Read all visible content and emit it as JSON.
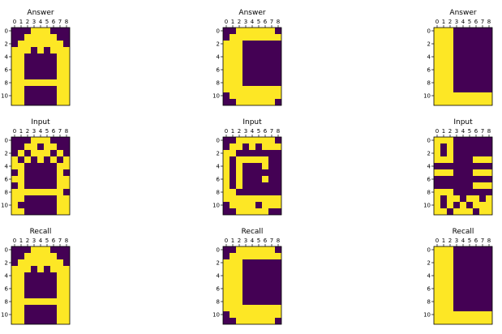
{
  "colors": {
    "on": "#fde725",
    "off": "#440154",
    "axis": "#000000",
    "background": "#ffffff"
  },
  "chart_data": [
    {
      "type": "heatmap",
      "title": "Answer",
      "xticks": [
        "0",
        "1",
        "2",
        "3",
        "4",
        "5",
        "6",
        "7",
        "8"
      ],
      "yticks": [
        "0",
        "2",
        "4",
        "6",
        "8",
        "10"
      ],
      "grid": [
        [
          0,
          0,
          0,
          1,
          1,
          1,
          0,
          0,
          0
        ],
        [
          0,
          0,
          1,
          1,
          1,
          1,
          1,
          0,
          0
        ],
        [
          0,
          1,
          1,
          1,
          1,
          1,
          1,
          1,
          0
        ],
        [
          1,
          1,
          1,
          0,
          1,
          0,
          1,
          1,
          1
        ],
        [
          1,
          1,
          0,
          0,
          0,
          0,
          0,
          1,
          1
        ],
        [
          1,
          1,
          0,
          0,
          0,
          0,
          0,
          1,
          1
        ],
        [
          1,
          1,
          0,
          0,
          0,
          0,
          0,
          1,
          1
        ],
        [
          1,
          1,
          0,
          0,
          0,
          0,
          0,
          1,
          1
        ],
        [
          1,
          1,
          1,
          1,
          1,
          1,
          1,
          1,
          1
        ],
        [
          1,
          1,
          0,
          0,
          0,
          0,
          0,
          1,
          1
        ],
        [
          1,
          1,
          0,
          0,
          0,
          0,
          0,
          1,
          1
        ],
        [
          1,
          1,
          0,
          0,
          0,
          0,
          0,
          1,
          1
        ]
      ]
    },
    {
      "type": "heatmap",
      "title": "Answer",
      "xticks": [
        "0",
        "1",
        "2",
        "3",
        "4",
        "5",
        "6",
        "7",
        "8"
      ],
      "yticks": [
        "0",
        "2",
        "4",
        "6",
        "8",
        "10"
      ],
      "grid": [
        [
          0,
          0,
          1,
          1,
          1,
          1,
          1,
          1,
          0
        ],
        [
          0,
          1,
          1,
          1,
          1,
          1,
          1,
          1,
          1
        ],
        [
          1,
          1,
          1,
          0,
          0,
          0,
          0,
          0,
          0
        ],
        [
          1,
          1,
          1,
          0,
          0,
          0,
          0,
          0,
          0
        ],
        [
          1,
          1,
          1,
          0,
          0,
          0,
          0,
          0,
          0
        ],
        [
          1,
          1,
          1,
          0,
          0,
          0,
          0,
          0,
          0
        ],
        [
          1,
          1,
          1,
          0,
          0,
          0,
          0,
          0,
          0
        ],
        [
          1,
          1,
          1,
          0,
          0,
          0,
          0,
          0,
          0
        ],
        [
          1,
          1,
          1,
          0,
          0,
          0,
          0,
          0,
          0
        ],
        [
          1,
          1,
          1,
          1,
          1,
          1,
          1,
          1,
          1
        ],
        [
          0,
          1,
          1,
          1,
          1,
          1,
          1,
          1,
          1
        ],
        [
          0,
          0,
          1,
          1,
          1,
          1,
          1,
          1,
          0
        ]
      ]
    },
    {
      "type": "heatmap",
      "title": "Answer",
      "xticks": [
        "0",
        "1",
        "2",
        "3",
        "4",
        "5",
        "6",
        "7",
        "8"
      ],
      "yticks": [
        "0",
        "2",
        "4",
        "6",
        "8",
        "10"
      ],
      "grid": [
        [
          1,
          1,
          1,
          0,
          0,
          0,
          0,
          0,
          0
        ],
        [
          1,
          1,
          1,
          0,
          0,
          0,
          0,
          0,
          0
        ],
        [
          1,
          1,
          1,
          0,
          0,
          0,
          0,
          0,
          0
        ],
        [
          1,
          1,
          1,
          0,
          0,
          0,
          0,
          0,
          0
        ],
        [
          1,
          1,
          1,
          0,
          0,
          0,
          0,
          0,
          0
        ],
        [
          1,
          1,
          1,
          0,
          0,
          0,
          0,
          0,
          0
        ],
        [
          1,
          1,
          1,
          0,
          0,
          0,
          0,
          0,
          0
        ],
        [
          1,
          1,
          1,
          0,
          0,
          0,
          0,
          0,
          0
        ],
        [
          1,
          1,
          1,
          0,
          0,
          0,
          0,
          0,
          0
        ],
        [
          1,
          1,
          1,
          0,
          0,
          0,
          0,
          0,
          0
        ],
        [
          1,
          1,
          1,
          1,
          1,
          1,
          1,
          1,
          1
        ],
        [
          1,
          1,
          1,
          1,
          1,
          1,
          1,
          1,
          1
        ]
      ]
    },
    {
      "type": "heatmap",
      "title": "Input",
      "xticks": [
        "0",
        "1",
        "2",
        "3",
        "4",
        "5",
        "6",
        "7",
        "8"
      ],
      "yticks": [
        "0",
        "2",
        "4",
        "6",
        "8",
        "10"
      ],
      "grid": [
        [
          0,
          0,
          0,
          1,
          1,
          1,
          0,
          0,
          0
        ],
        [
          0,
          0,
          1,
          1,
          0,
          1,
          1,
          0,
          0
        ],
        [
          0,
          1,
          0,
          1,
          1,
          1,
          0,
          1,
          0
        ],
        [
          1,
          0,
          1,
          0,
          1,
          0,
          1,
          0,
          1
        ],
        [
          1,
          1,
          0,
          0,
          0,
          0,
          0,
          1,
          1
        ],
        [
          0,
          1,
          0,
          0,
          0,
          0,
          0,
          1,
          0
        ],
        [
          1,
          1,
          0,
          0,
          0,
          0,
          0,
          1,
          1
        ],
        [
          0,
          1,
          0,
          0,
          0,
          0,
          0,
          1,
          1
        ],
        [
          1,
          1,
          1,
          1,
          1,
          1,
          1,
          1,
          0
        ],
        [
          1,
          1,
          0,
          0,
          0,
          0,
          0,
          1,
          1
        ],
        [
          1,
          0,
          0,
          0,
          0,
          0,
          0,
          1,
          1
        ],
        [
          1,
          1,
          0,
          0,
          0,
          0,
          0,
          1,
          1
        ]
      ]
    },
    {
      "type": "heatmap",
      "title": "Input",
      "xticks": [
        "0",
        "1",
        "2",
        "3",
        "4",
        "5",
        "6",
        "7",
        "8"
      ],
      "yticks": [
        "0",
        "2",
        "4",
        "6",
        "8",
        "10"
      ],
      "grid": [
        [
          0,
          0,
          1,
          1,
          1,
          1,
          1,
          1,
          0
        ],
        [
          0,
          1,
          1,
          0,
          1,
          0,
          1,
          1,
          1
        ],
        [
          1,
          1,
          0,
          0,
          0,
          0,
          0,
          0,
          0
        ],
        [
          1,
          0,
          1,
          1,
          1,
          1,
          1,
          0,
          0
        ],
        [
          1,
          0,
          1,
          0,
          0,
          0,
          1,
          0,
          0
        ],
        [
          1,
          0,
          1,
          0,
          0,
          0,
          0,
          0,
          0
        ],
        [
          1,
          0,
          1,
          0,
          0,
          0,
          1,
          0,
          0
        ],
        [
          1,
          0,
          1,
          0,
          0,
          0,
          0,
          0,
          0
        ],
        [
          1,
          1,
          0,
          0,
          0,
          0,
          0,
          0,
          0
        ],
        [
          1,
          1,
          1,
          1,
          1,
          1,
          1,
          1,
          1
        ],
        [
          0,
          1,
          1,
          1,
          1,
          0,
          1,
          1,
          1
        ],
        [
          0,
          0,
          1,
          1,
          1,
          1,
          1,
          0,
          0
        ]
      ]
    },
    {
      "type": "heatmap",
      "title": "Input",
      "xticks": [
        "0",
        "1",
        "2",
        "3",
        "4",
        "5",
        "6",
        "7",
        "8"
      ],
      "yticks": [
        "0",
        "2",
        "4",
        "6",
        "8",
        "10"
      ],
      "grid": [
        [
          1,
          1,
          1,
          0,
          0,
          0,
          0,
          0,
          0
        ],
        [
          1,
          0,
          1,
          0,
          0,
          0,
          0,
          0,
          0
        ],
        [
          1,
          0,
          1,
          0,
          0,
          0,
          0,
          0,
          0
        ],
        [
          1,
          1,
          1,
          0,
          0,
          0,
          1,
          1,
          1
        ],
        [
          0,
          0,
          0,
          0,
          0,
          0,
          0,
          0,
          0
        ],
        [
          1,
          1,
          1,
          0,
          0,
          0,
          1,
          1,
          1
        ],
        [
          0,
          0,
          0,
          0,
          0,
          0,
          0,
          0,
          0
        ],
        [
          0,
          0,
          0,
          0,
          0,
          0,
          1,
          1,
          1
        ],
        [
          1,
          1,
          1,
          0,
          0,
          0,
          0,
          0,
          0
        ],
        [
          1,
          0,
          1,
          1,
          0,
          1,
          1,
          0,
          1
        ],
        [
          1,
          0,
          1,
          0,
          1,
          0,
          1,
          1,
          1
        ],
        [
          1,
          1,
          0,
          1,
          1,
          1,
          0,
          1,
          1
        ]
      ]
    },
    {
      "type": "heatmap",
      "title": "Recall",
      "xticks": [
        "0",
        "1",
        "2",
        "3",
        "4",
        "5",
        "6",
        "7",
        "8"
      ],
      "yticks": [
        "0",
        "2",
        "4",
        "6",
        "8",
        "10"
      ],
      "grid": [
        [
          0,
          0,
          0,
          1,
          1,
          1,
          0,
          0,
          0
        ],
        [
          0,
          0,
          1,
          1,
          1,
          1,
          1,
          0,
          0
        ],
        [
          0,
          1,
          1,
          1,
          1,
          1,
          1,
          1,
          0
        ],
        [
          1,
          1,
          1,
          0,
          1,
          0,
          1,
          1,
          1
        ],
        [
          1,
          1,
          0,
          0,
          0,
          0,
          0,
          1,
          1
        ],
        [
          1,
          1,
          0,
          0,
          0,
          0,
          0,
          1,
          1
        ],
        [
          1,
          1,
          0,
          0,
          0,
          0,
          0,
          1,
          1
        ],
        [
          1,
          1,
          0,
          0,
          0,
          0,
          0,
          1,
          1
        ],
        [
          1,
          1,
          1,
          1,
          1,
          1,
          1,
          1,
          1
        ],
        [
          1,
          1,
          0,
          0,
          0,
          0,
          0,
          1,
          1
        ],
        [
          1,
          1,
          0,
          0,
          0,
          0,
          0,
          1,
          1
        ],
        [
          1,
          1,
          0,
          0,
          0,
          0,
          0,
          1,
          1
        ]
      ]
    },
    {
      "type": "heatmap",
      "title": "Recall",
      "xticks": [
        "0",
        "1",
        "2",
        "3",
        "4",
        "5",
        "6",
        "7",
        "8"
      ],
      "yticks": [
        "0",
        "2",
        "4",
        "6",
        "8",
        "10"
      ],
      "grid": [
        [
          0,
          0,
          1,
          1,
          1,
          1,
          1,
          1,
          0
        ],
        [
          0,
          1,
          1,
          1,
          1,
          1,
          1,
          1,
          1
        ],
        [
          1,
          1,
          1,
          0,
          0,
          0,
          0,
          0,
          0
        ],
        [
          1,
          1,
          1,
          0,
          0,
          0,
          0,
          0,
          0
        ],
        [
          1,
          1,
          1,
          0,
          0,
          0,
          0,
          0,
          0
        ],
        [
          1,
          1,
          1,
          0,
          0,
          0,
          0,
          0,
          0
        ],
        [
          1,
          1,
          1,
          0,
          0,
          0,
          0,
          0,
          0
        ],
        [
          1,
          1,
          1,
          0,
          0,
          0,
          0,
          0,
          0
        ],
        [
          1,
          1,
          1,
          0,
          0,
          0,
          0,
          0,
          0
        ],
        [
          1,
          1,
          1,
          1,
          1,
          1,
          1,
          1,
          1
        ],
        [
          0,
          1,
          1,
          1,
          1,
          1,
          1,
          1,
          1
        ],
        [
          0,
          0,
          1,
          1,
          1,
          1,
          1,
          1,
          0
        ]
      ]
    },
    {
      "type": "heatmap",
      "title": "Recall",
      "xticks": [
        "0",
        "1",
        "2",
        "3",
        "4",
        "5",
        "6",
        "7",
        "8"
      ],
      "yticks": [
        "0",
        "2",
        "4",
        "6",
        "8",
        "10"
      ],
      "grid": [
        [
          1,
          1,
          1,
          0,
          0,
          0,
          0,
          0,
          0
        ],
        [
          1,
          1,
          1,
          0,
          0,
          0,
          0,
          0,
          0
        ],
        [
          1,
          1,
          1,
          0,
          0,
          0,
          0,
          0,
          0
        ],
        [
          1,
          1,
          1,
          0,
          0,
          0,
          0,
          0,
          0
        ],
        [
          1,
          1,
          1,
          0,
          0,
          0,
          0,
          0,
          0
        ],
        [
          1,
          1,
          1,
          0,
          0,
          0,
          0,
          0,
          0
        ],
        [
          1,
          1,
          1,
          0,
          0,
          0,
          0,
          0,
          0
        ],
        [
          1,
          1,
          1,
          0,
          0,
          0,
          0,
          0,
          0
        ],
        [
          1,
          1,
          1,
          0,
          0,
          0,
          0,
          0,
          0
        ],
        [
          1,
          1,
          1,
          0,
          0,
          0,
          0,
          0,
          0
        ],
        [
          1,
          1,
          1,
          1,
          1,
          1,
          1,
          1,
          1
        ],
        [
          1,
          1,
          1,
          1,
          1,
          1,
          1,
          1,
          1
        ]
      ]
    }
  ]
}
